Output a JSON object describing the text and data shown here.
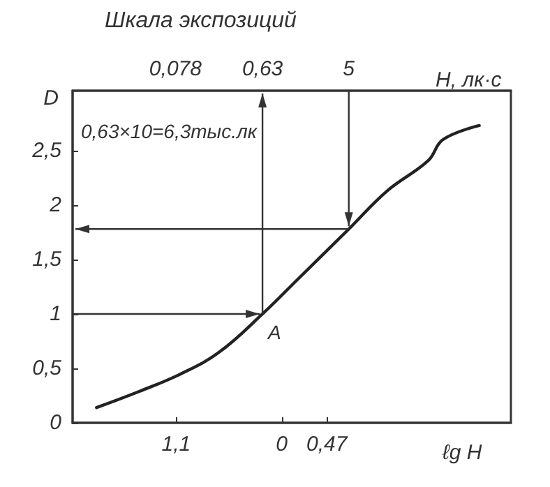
{
  "chart_data": {
    "type": "line",
    "title": "Шкала экспозиций",
    "xlabel": "ℓg H",
    "ylabel": "D",
    "x2label": "H, лк·с",
    "x": [
      -1.93,
      -1.48,
      -1.05,
      -0.65,
      -0.2,
      0.17,
      0.7,
      1.1,
      1.53,
      1.68,
      2.06
    ],
    "series": [
      {
        "color": "#222222",
        "values": [
          0.14,
          0.29,
          0.45,
          0.65,
          1.0,
          1.32,
          1.78,
          2.13,
          2.41,
          2.6,
          2.73
        ]
      }
    ],
    "xlim": [
      -2.18,
      2.39
    ],
    "xticks": [
      {
        "value": -1.1,
        "label": "1,1"
      },
      0,
      {
        "value": 0.47,
        "label": "0,47"
      }
    ],
    "x2lim": [
      0.0066,
      245
    ],
    "x2ticks": [
      {
        "value": 0.078,
        "label": "0,078"
      },
      {
        "value": 0.63,
        "label": "0,63"
      },
      5
    ],
    "log": "x2",
    "ylim": [
      0,
      3.05
    ],
    "yticks": [
      0,
      {
        "value": 0.5,
        "label": "0,5"
      },
      1,
      {
        "value": 1.5,
        "label": "1,5"
      },
      2,
      {
        "value": 2.5,
        "label": "2,5"
      }
    ],
    "annotations": [
      {
        "text": "A",
        "x": -0.2,
        "y": 1.0
      },
      "0,63×10=6,3тыс.лк"
    ],
    "grid": false,
    "marker": "none",
    "line_style": "solid"
  }
}
